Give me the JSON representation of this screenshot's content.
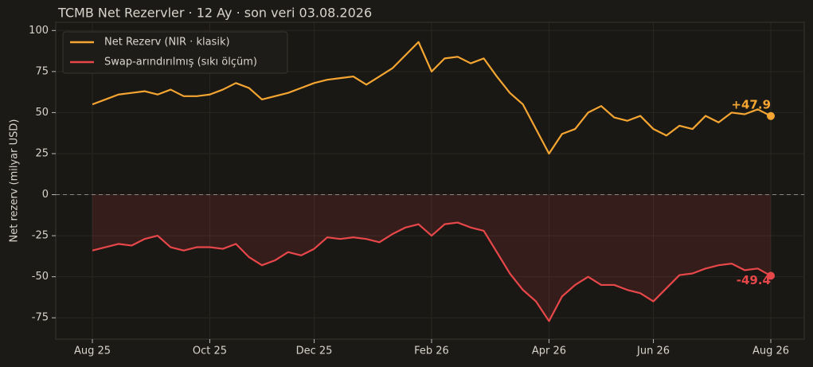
{
  "chart_data": {
    "type": "line",
    "title": "TCMB Net Rezervler · 12 Ay · son veri 03.08.2026",
    "y_label": "Net rezerv (milyar USD)",
    "categories": [
      "Aug 25",
      null,
      null,
      null,
      null,
      null,
      null,
      null,
      null,
      "Oct 25",
      null,
      null,
      null,
      null,
      null,
      null,
      null,
      "Dec 25",
      null,
      null,
      null,
      null,
      null,
      null,
      null,
      null,
      "Feb 26",
      null,
      null,
      null,
      null,
      null,
      null,
      null,
      null,
      "Apr 26",
      null,
      null,
      null,
      null,
      null,
      null,
      null,
      "Jun 26",
      null,
      null,
      null,
      null,
      null,
      null,
      null,
      null,
      "Aug 26"
    ],
    "series": [
      {
        "name": "Net Rezerv (NIR · klasik)",
        "color": "#f5a531",
        "values": [
          55,
          58,
          61,
          62,
          63,
          61,
          64,
          60,
          60,
          61,
          64,
          68,
          65,
          58,
          60,
          62,
          65,
          68,
          70,
          71,
          72,
          67,
          72,
          77,
          85,
          93,
          75,
          83,
          84,
          80,
          83,
          72,
          62,
          55,
          40,
          25,
          37,
          40,
          50,
          54,
          47,
          45,
          48,
          40,
          36,
          42,
          40,
          48,
          44,
          50,
          49,
          52,
          47.9
        ],
        "value_labels": [
          null,
          null,
          null,
          null,
          null,
          null,
          null,
          null,
          null,
          null,
          null,
          null,
          null,
          null,
          null,
          null,
          null,
          null,
          null,
          null,
          null,
          null,
          null,
          null,
          null,
          null,
          null,
          null,
          null,
          null,
          null,
          null,
          null,
          null,
          null,
          null,
          null,
          null,
          null,
          null,
          null,
          null,
          null,
          null,
          null,
          null,
          null,
          null,
          null,
          null,
          null,
          null,
          "+47.9"
        ]
      },
      {
        "name": "Swap-arındırılmış (sıkı ölçüm)",
        "color": "#e8474a",
        "values": [
          -34,
          -32,
          -30,
          -31,
          -27,
          -25,
          -32,
          -34,
          -32,
          -32,
          -33,
          -30,
          -38,
          -43,
          -40,
          -35,
          -37,
          -33,
          -26,
          -27,
          -26,
          -27,
          -29,
          -24,
          -20,
          -18,
          -25,
          -18,
          -17,
          -20,
          -22,
          -35,
          -48,
          -58,
          -65,
          -77,
          -62,
          -55,
          -50,
          -55,
          -55,
          -58,
          -60,
          -65,
          -57,
          -49,
          -48,
          -45,
          -43,
          -42,
          -46,
          -45,
          -49.4
        ]
      }
    ],
    "ylim": [
      -88,
      105
    ],
    "yticks": [
      -75,
      -50,
      -25,
      0,
      25,
      50,
      75,
      100
    ],
    "grid": true,
    "legend": "upper left"
  }
}
